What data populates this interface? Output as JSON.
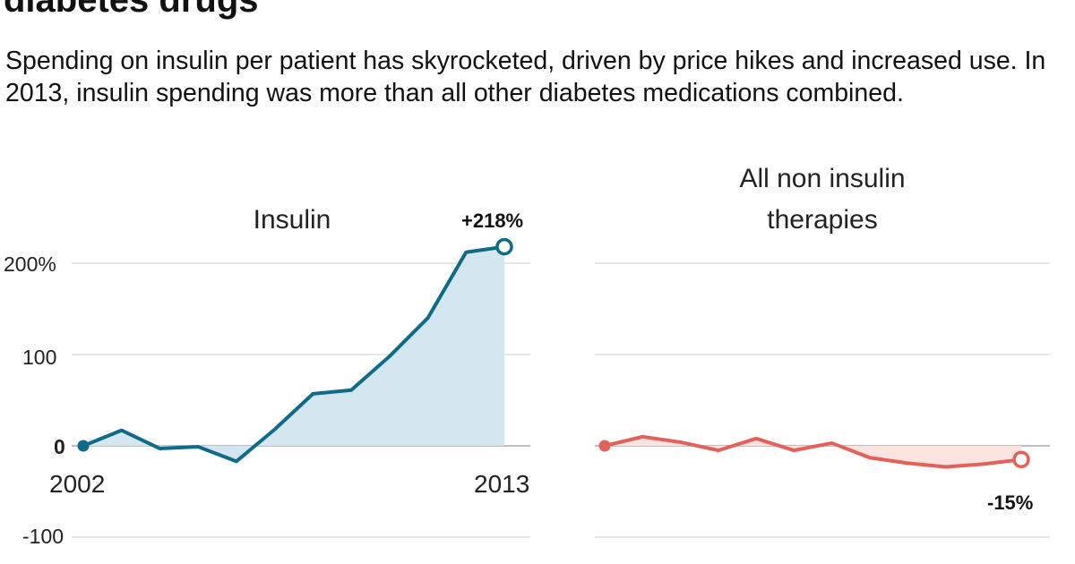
{
  "title": "diabetes drugs",
  "subtitle": "Spending on insulin per patient has skyrocketed, driven by price hikes and increased use. In 2013, insulin spending was more than all other diabetes medications combined.",
  "chart_data": [
    {
      "type": "area",
      "title": "Insulin",
      "x": [
        2002,
        2003,
        2004,
        2005,
        2006,
        2007,
        2008,
        2009,
        2010,
        2011,
        2012,
        2013
      ],
      "values": [
        0,
        17,
        -3,
        -1,
        -17,
        18,
        57,
        61,
        98,
        140,
        212,
        218
      ],
      "x_tick_labels": [
        "2002",
        "2013"
      ],
      "y_ticks": [
        {
          "value": 200,
          "label": "200%"
        },
        {
          "value": 100,
          "label": "100"
        },
        {
          "value": 0,
          "label": "0"
        },
        {
          "value": -100,
          "label": "-100"
        }
      ],
      "ylim": [
        -100,
        220
      ],
      "end_label": "+218%",
      "color": "#0f6b87",
      "fill": "#d4e7f1",
      "grid": true
    },
    {
      "type": "area",
      "title_lines": [
        "All non insulin",
        "therapies"
      ],
      "x": [
        2002,
        2003,
        2004,
        2005,
        2006,
        2007,
        2008,
        2009,
        2010,
        2011,
        2012,
        2013
      ],
      "values": [
        0,
        10,
        4,
        -5,
        8,
        -5,
        3,
        -13,
        -19,
        -23,
        -20,
        -15
      ],
      "ylim": [
        -100,
        220
      ],
      "end_label": "-15%",
      "color": "#e5605a",
      "fill": "#fbe3df",
      "grid": true
    }
  ]
}
